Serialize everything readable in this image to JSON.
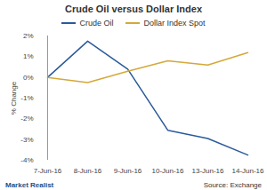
{
  "chart_data": {
    "type": "line",
    "title": "Crude Oil versus Dollar Index",
    "y_label": "% Change",
    "source": "Source: Exchange",
    "credit": "Market Realist",
    "legend": "top",
    "grid": false,
    "categories": [
      "7-Jun-16",
      "8-Jun-16",
      "9-Jun-16",
      "10-Jun-16",
      "13-Jun-16",
      "14-Jun-16"
    ],
    "series": [
      {
        "name": "Crude Oil",
        "color": "#2a5a9b",
        "values": [
          0,
          1.75,
          0.4,
          -2.55,
          -2.95,
          -3.75
        ]
      },
      {
        "name": "Dollar Index Spot",
        "color": "#d4a83a",
        "values": [
          0,
          -0.25,
          0.3,
          0.8,
          0.6,
          1.2
        ]
      }
    ],
    "ylim": [
      -4,
      2
    ],
    "yticks": [
      {
        "value": -4,
        "label": "-4%"
      },
      {
        "value": -3,
        "label": "-3%"
      },
      {
        "value": -2,
        "label": "-2%"
      },
      {
        "value": -1,
        "label": "-1%"
      },
      {
        "value": 0,
        "label": "0%"
      },
      {
        "value": 1,
        "label": "1%"
      },
      {
        "value": 2,
        "label": "2%"
      }
    ]
  }
}
